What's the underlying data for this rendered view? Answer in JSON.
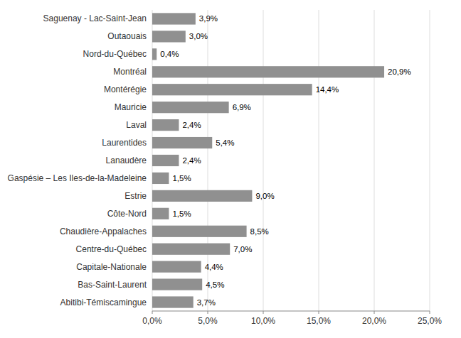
{
  "chart_data": {
    "type": "bar",
    "orientation": "horizontal",
    "categories": [
      "Saguenay - Lac-Saint-Jean",
      "Outaouais",
      "Nord-du-Québec",
      "Montréal",
      "Montérégie",
      "Mauricie",
      "Laval",
      "Laurentides",
      "Lanaudère",
      "Gaspésie – Les Iles-de-la-Madeleine",
      "Estrie",
      "Côte-Nord",
      "Chaudière-Appalaches",
      "Centre-du-Québec",
      "Capitale-Nationale",
      "Bas-Saint-Laurent",
      "Abitibi-Témiscamingue"
    ],
    "values": [
      3.9,
      3.0,
      0.4,
      20.9,
      14.4,
      6.9,
      2.4,
      5.4,
      2.4,
      1.5,
      9.0,
      1.5,
      8.5,
      7.0,
      4.4,
      4.5,
      3.7
    ],
    "value_labels": [
      "3,9%",
      "3,0%",
      "0,4%",
      "20,9%",
      "14,4%",
      "6,9%",
      "2,4%",
      "5,4%",
      "2,4%",
      "1,5%",
      "9,0%",
      "1,5%",
      "8,5%",
      "7,0%",
      "4,4%",
      "4,5%",
      "3,7%"
    ],
    "color": "#909090",
    "xlim": [
      0,
      25
    ],
    "xticks": [
      {
        "value": 0,
        "label": "0,0%"
      },
      {
        "value": 5,
        "label": "5,0%"
      },
      {
        "value": 10,
        "label": "10,0%"
      },
      {
        "value": 15,
        "label": "15,0%"
      },
      {
        "value": 20,
        "label": "20,0%"
      },
      {
        "value": 25,
        "label": "25,0%"
      }
    ],
    "grid": true,
    "data_labels": true
  }
}
